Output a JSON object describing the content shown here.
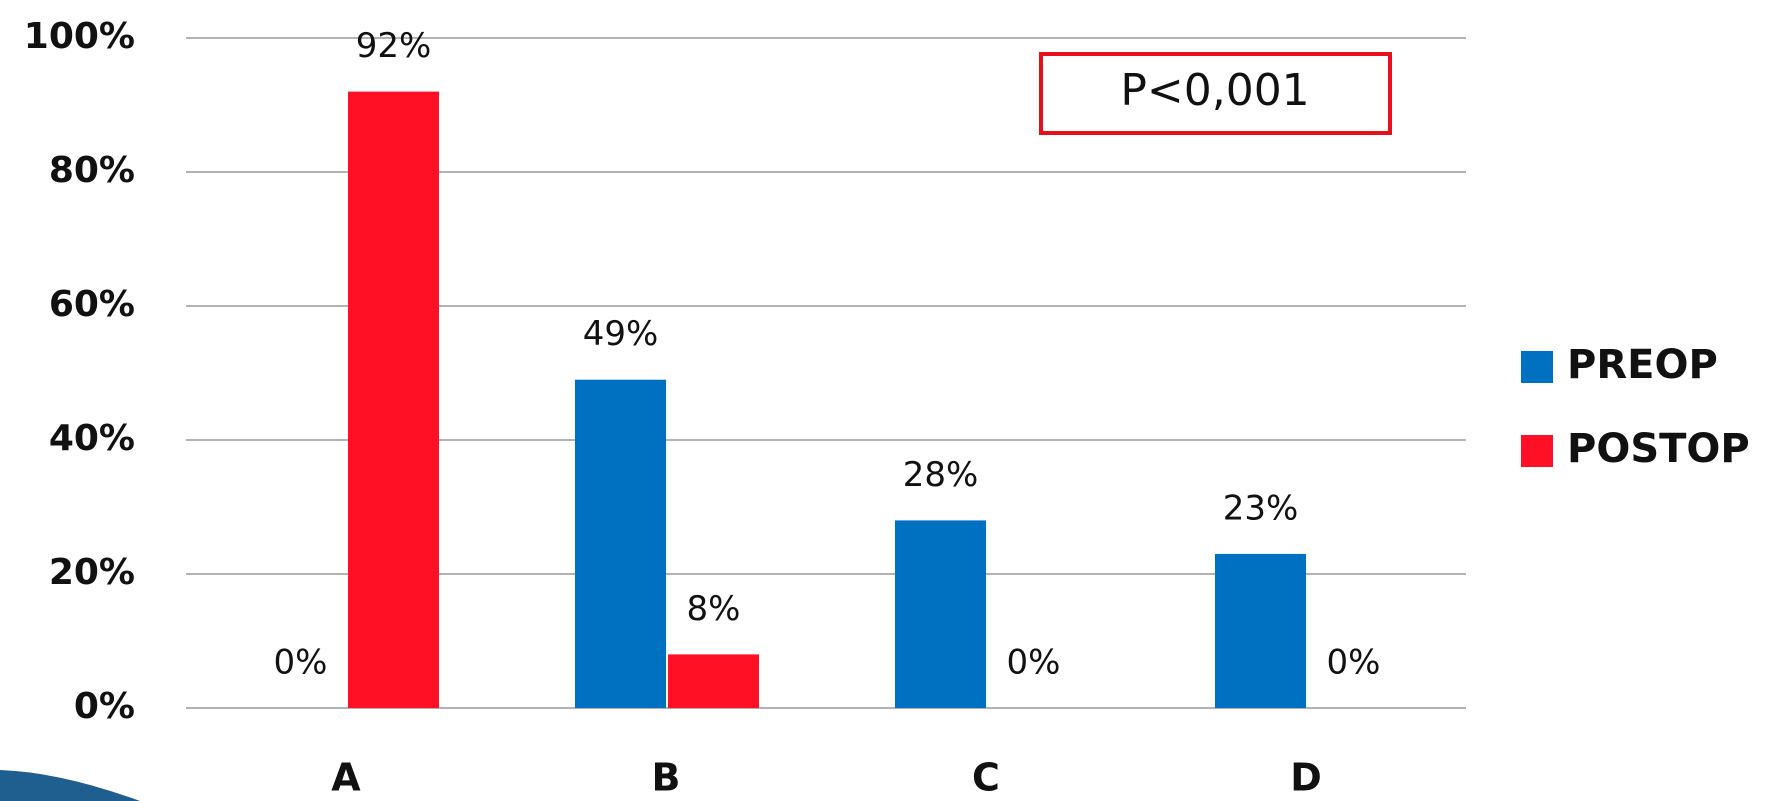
{
  "chart_data": {
    "type": "bar",
    "categories": [
      "A",
      "B",
      "C",
      "D"
    ],
    "series": [
      {
        "name": "PREOP",
        "color": "#0070c0",
        "values": [
          0,
          49,
          28,
          23
        ],
        "value_labels": [
          "0%",
          "49%",
          "28%",
          "23%"
        ]
      },
      {
        "name": "POSTOP",
        "color": "#ff1025",
        "values": [
          92,
          8,
          0,
          0
        ],
        "value_labels": [
          "92%",
          "8%",
          "0%",
          "0%"
        ]
      }
    ],
    "ylim": [
      0,
      100
    ],
    "yticks": [
      {
        "value": 0,
        "label": "0%"
      },
      {
        "value": 20,
        "label": "20%"
      },
      {
        "value": 40,
        "label": "40%"
      },
      {
        "value": 60,
        "label": "60%"
      },
      {
        "value": 80,
        "label": "80%"
      },
      {
        "value": 100,
        "label": "100%"
      }
    ],
    "grid": true,
    "legend": "right",
    "annotation": "P<0,001"
  }
}
